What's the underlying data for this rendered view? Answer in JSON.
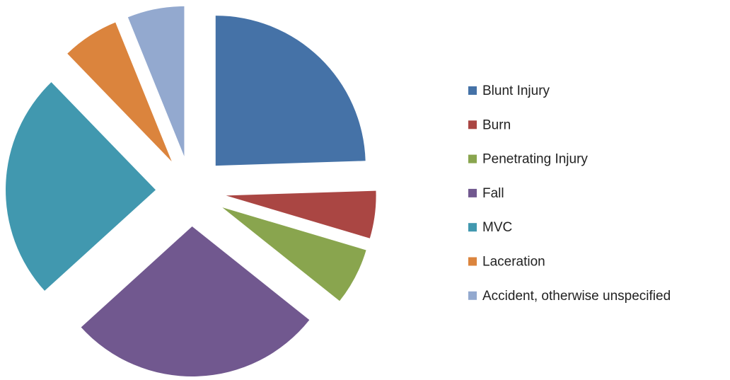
{
  "chart_data": {
    "type": "pie",
    "categories": [
      "Blunt Injury",
      "Burn",
      "Penetrating Injury",
      "Fall",
      "MVC",
      "Laceration",
      "Accident, otherwise unspecified"
    ],
    "values": [
      24,
      5,
      6,
      27,
      24,
      6,
      6
    ],
    "colors": [
      "#4572a7",
      "#aa4643",
      "#89a54e",
      "#71588f",
      "#4198af",
      "#db843d",
      "#93a9cf"
    ],
    "exploded": true,
    "legend": "right"
  }
}
